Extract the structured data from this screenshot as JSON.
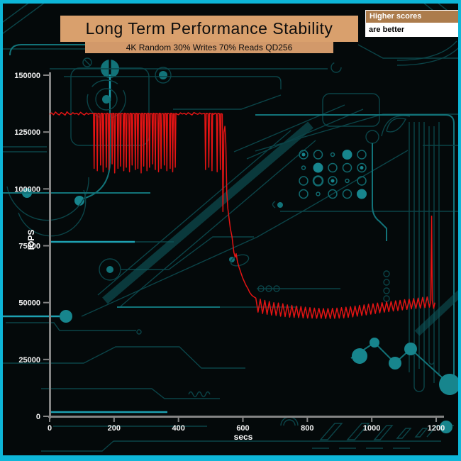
{
  "header": {
    "title": "Long Term Performance Stability",
    "subtitle": "4K Random 30% Writes 70% Reads QD256",
    "legend": {
      "line1": "Higher scores",
      "line2": "are better"
    }
  },
  "colors": {
    "frame": "#0db6d8",
    "background": "#04090a",
    "circuit_trace": "#127379",
    "title_bg": "#d9a06d",
    "legend_header_bg": "#ac7c4c",
    "legend_body_bg": "#ffffff",
    "axis": "#848484",
    "tick_label": "#f2f2f2",
    "line": "#e31414"
  },
  "chart_data": {
    "type": "line",
    "title": "Long Term Performance Stability",
    "subtitle": "4K Random 30% Writes 70% Reads QD256",
    "xlabel": "secs",
    "ylabel": "IOPS",
    "xlim": [
      0,
      1200
    ],
    "ylim": [
      0,
      150000
    ],
    "x_ticks": [
      0,
      200,
      400,
      600,
      800,
      1000,
      1200
    ],
    "y_ticks": [
      0,
      25000,
      50000,
      75000,
      100000,
      125000,
      150000
    ],
    "grid": false,
    "legend_position": "top-right",
    "line_color": "#e31414",
    "series": [
      {
        "name": "IOPS",
        "points": [
          [
            0,
            132800
          ],
          [
            6,
            133400
          ],
          [
            12,
            132600
          ],
          [
            18,
            133800
          ],
          [
            24,
            133000
          ],
          [
            30,
            132500
          ],
          [
            36,
            133600
          ],
          [
            42,
            133100
          ],
          [
            48,
            132400
          ],
          [
            54,
            133900
          ],
          [
            60,
            133000
          ],
          [
            66,
            132700
          ],
          [
            72,
            133500
          ],
          [
            78,
            132900
          ],
          [
            84,
            133300
          ],
          [
            90,
            132600
          ],
          [
            96,
            133700
          ],
          [
            102,
            133000
          ],
          [
            108,
            132500
          ],
          [
            114,
            133400
          ],
          [
            120,
            132800
          ],
          [
            126,
            133200
          ],
          [
            132,
            133100
          ],
          [
            136,
            133200
          ],
          [
            138,
            109000
          ],
          [
            140,
            133300
          ],
          [
            146,
            133100
          ],
          [
            148,
            108000
          ],
          [
            150,
            133200
          ],
          [
            156,
            133000
          ],
          [
            158,
            110500
          ],
          [
            160,
            133300
          ],
          [
            164,
            133200
          ],
          [
            166,
            107500
          ],
          [
            168,
            133100
          ],
          [
            174,
            133000
          ],
          [
            176,
            109500
          ],
          [
            178,
            133300
          ],
          [
            182,
            133200
          ],
          [
            184,
            108500
          ],
          [
            186,
            133000
          ],
          [
            192,
            133100
          ],
          [
            194,
            111000
          ],
          [
            196,
            133300
          ],
          [
            200,
            133200
          ],
          [
            202,
            107000
          ],
          [
            204,
            133100
          ],
          [
            210,
            133000
          ],
          [
            212,
            109000
          ],
          [
            214,
            133300
          ],
          [
            218,
            133100
          ],
          [
            220,
            110000
          ],
          [
            222,
            133200
          ],
          [
            228,
            133000
          ],
          [
            230,
            108000
          ],
          [
            232,
            133300
          ],
          [
            236,
            133200
          ],
          [
            238,
            109500
          ],
          [
            240,
            133100
          ],
          [
            246,
            133000
          ],
          [
            248,
            107500
          ],
          [
            250,
            133300
          ],
          [
            254,
            133100
          ],
          [
            256,
            110500
          ],
          [
            258,
            133200
          ],
          [
            264,
            133000
          ],
          [
            266,
            108500
          ],
          [
            268,
            133300
          ],
          [
            272,
            133200
          ],
          [
            274,
            109000
          ],
          [
            276,
            133100
          ],
          [
            282,
            133000
          ],
          [
            284,
            107000
          ],
          [
            286,
            133300
          ],
          [
            290,
            133100
          ],
          [
            292,
            110000
          ],
          [
            294,
            133200
          ],
          [
            300,
            133000
          ],
          [
            302,
            108000
          ],
          [
            304,
            133300
          ],
          [
            308,
            133200
          ],
          [
            310,
            109500
          ],
          [
            312,
            133100
          ],
          [
            318,
            133000
          ],
          [
            320,
            111000
          ],
          [
            322,
            133300
          ],
          [
            326,
            133100
          ],
          [
            328,
            108500
          ],
          [
            330,
            133200
          ],
          [
            336,
            133000
          ],
          [
            338,
            107500
          ],
          [
            340,
            133300
          ],
          [
            344,
            133200
          ],
          [
            346,
            109000
          ],
          [
            348,
            133100
          ],
          [
            354,
            133000
          ],
          [
            356,
            110500
          ],
          [
            358,
            133300
          ],
          [
            362,
            133100
          ],
          [
            364,
            108000
          ],
          [
            366,
            133200
          ],
          [
            372,
            133000
          ],
          [
            374,
            109000
          ],
          [
            376,
            133300
          ],
          [
            380,
            133200
          ],
          [
            382,
            107500
          ],
          [
            384,
            133100
          ],
          [
            388,
            133000
          ],
          [
            390,
            109500
          ],
          [
            392,
            133300
          ],
          [
            394,
            133000
          ],
          [
            400,
            132600
          ],
          [
            406,
            133400
          ],
          [
            412,
            132900
          ],
          [
            418,
            133300
          ],
          [
            424,
            132700
          ],
          [
            430,
            133500
          ],
          [
            436,
            133000
          ],
          [
            442,
            132500
          ],
          [
            448,
            133600
          ],
          [
            454,
            133100
          ],
          [
            460,
            132800
          ],
          [
            466,
            133400
          ],
          [
            472,
            132900
          ],
          [
            478,
            133200
          ],
          [
            482,
            133100
          ],
          [
            484,
            108500
          ],
          [
            486,
            133200
          ],
          [
            492,
            133000
          ],
          [
            494,
            109500
          ],
          [
            496,
            133300
          ],
          [
            502,
            133100
          ],
          [
            504,
            108000
          ],
          [
            506,
            133200
          ],
          [
            510,
            132800
          ],
          [
            514,
            133300
          ],
          [
            518,
            133000
          ],
          [
            520,
            107500
          ],
          [
            522,
            133200
          ],
          [
            528,
            133000
          ],
          [
            530,
            108500
          ],
          [
            532,
            133100
          ],
          [
            536,
            132900
          ],
          [
            538,
            90000
          ],
          [
            541,
            125000
          ],
          [
            544,
            127500
          ],
          [
            547,
            120000
          ],
          [
            550,
            98000
          ],
          [
            553,
            91500
          ],
          [
            557,
            87000
          ],
          [
            561,
            82500
          ],
          [
            566,
            79000
          ],
          [
            572,
            72000
          ],
          [
            576,
            70000
          ],
          [
            579,
            71500
          ],
          [
            583,
            68000
          ],
          [
            588,
            65500
          ],
          [
            594,
            63000
          ],
          [
            599,
            61000
          ],
          [
            605,
            59000
          ],
          [
            610,
            57500
          ],
          [
            616,
            56000
          ],
          [
            621,
            54500
          ],
          [
            627,
            53300
          ],
          [
            633,
            52600
          ],
          [
            640,
            52000
          ],
          [
            647,
            45800
          ],
          [
            654,
            51500
          ],
          [
            661,
            45200
          ],
          [
            668,
            51000
          ],
          [
            675,
            44800
          ],
          [
            682,
            50500
          ],
          [
            689,
            44500
          ],
          [
            696,
            50000
          ],
          [
            703,
            44300
          ],
          [
            710,
            49800
          ],
          [
            717,
            44000
          ],
          [
            724,
            49500
          ],
          [
            731,
            43800
          ],
          [
            738,
            49000
          ],
          [
            745,
            43600
          ],
          [
            752,
            48800
          ],
          [
            759,
            43500
          ],
          [
            766,
            48500
          ],
          [
            773,
            43400
          ],
          [
            780,
            48300
          ],
          [
            787,
            43300
          ],
          [
            794,
            48000
          ],
          [
            801,
            43200
          ],
          [
            808,
            47800
          ],
          [
            815,
            43200
          ],
          [
            822,
            47600
          ],
          [
            829,
            43100
          ],
          [
            836,
            47500
          ],
          [
            843,
            43100
          ],
          [
            850,
            47400
          ],
          [
            857,
            43000
          ],
          [
            864,
            47400
          ],
          [
            871,
            43000
          ],
          [
            878,
            47500
          ],
          [
            885,
            43100
          ],
          [
            892,
            47600
          ],
          [
            899,
            43200
          ],
          [
            906,
            47800
          ],
          [
            913,
            43300
          ],
          [
            920,
            48000
          ],
          [
            927,
            43500
          ],
          [
            934,
            48200
          ],
          [
            941,
            43700
          ],
          [
            948,
            48500
          ],
          [
            955,
            44000
          ],
          [
            962,
            48800
          ],
          [
            969,
            44300
          ],
          [
            976,
            49000
          ],
          [
            983,
            44600
          ],
          [
            990,
            49300
          ],
          [
            997,
            44900
          ],
          [
            1004,
            49500
          ],
          [
            1011,
            45200
          ],
          [
            1018,
            49800
          ],
          [
            1025,
            45500
          ],
          [
            1032,
            50000
          ],
          [
            1039,
            45800
          ],
          [
            1046,
            50300
          ],
          [
            1053,
            46000
          ],
          [
            1060,
            50500
          ],
          [
            1067,
            46300
          ],
          [
            1074,
            50800
          ],
          [
            1081,
            46500
          ],
          [
            1088,
            51000
          ],
          [
            1095,
            46800
          ],
          [
            1102,
            51300
          ],
          [
            1109,
            47000
          ],
          [
            1116,
            51500
          ],
          [
            1123,
            47200
          ],
          [
            1130,
            51800
          ],
          [
            1137,
            47400
          ],
          [
            1144,
            52000
          ],
          [
            1151,
            47600
          ],
          [
            1158,
            52300
          ],
          [
            1165,
            47800
          ],
          [
            1172,
            52500
          ],
          [
            1179,
            48000
          ],
          [
            1183,
            50500
          ],
          [
            1186,
            88000
          ],
          [
            1188,
            51000
          ],
          [
            1192,
            47500
          ],
          [
            1196,
            50000
          ]
        ]
      }
    ]
  }
}
